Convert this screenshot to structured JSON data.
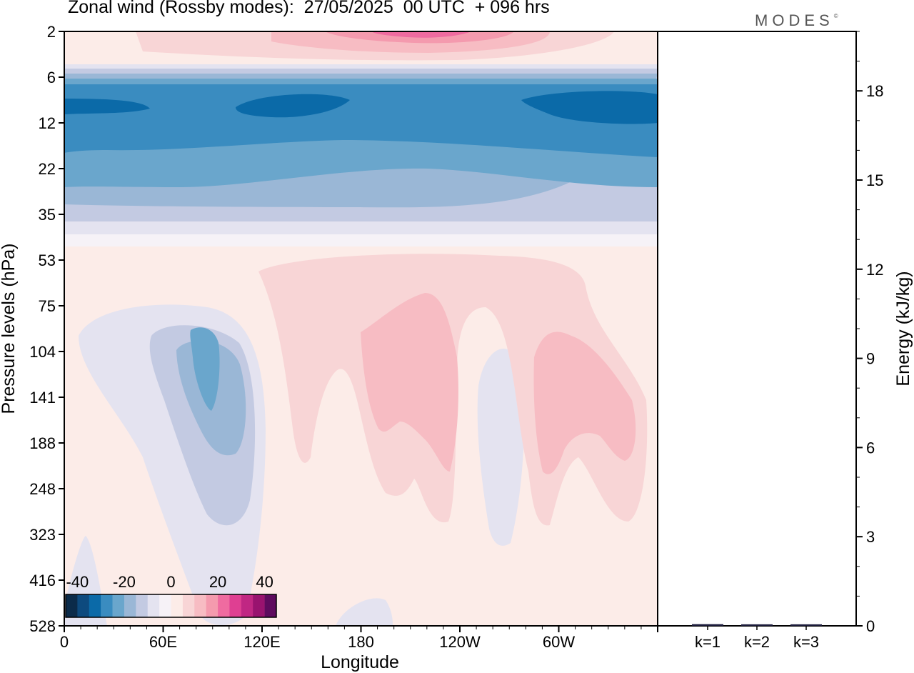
{
  "header": {
    "title": "Zonal wind (Rossby modes):  27/05/2025  00 UTC  + 096 hrs",
    "logo": "MODES",
    "logo_mark": "©"
  },
  "chart_data": [
    {
      "type": "heatmap",
      "xlabel": "Longitude",
      "ylabel": "Pressure levels (hPa)",
      "x_ticks": [
        "0",
        "60E",
        "120E",
        "180",
        "120W",
        "60W"
      ],
      "y_ticks": [
        "2",
        "6",
        "12",
        "22",
        "35",
        "53",
        "75",
        "104",
        "141",
        "188",
        "248",
        "323",
        "416",
        "528"
      ],
      "colorbar": {
        "ticks": [
          "-40",
          "-20",
          "0",
          "20",
          "40"
        ],
        "range": [
          -45,
          45
        ],
        "step": 5,
        "colors": [
          "#0b2b4a",
          "#0d4a7e",
          "#0b6aa8",
          "#3a8cc0",
          "#6aa6cc",
          "#9ab7d6",
          "#c3cae2",
          "#e4e3f0",
          "#f6f2f7",
          "#fcece8",
          "#f8d5d6",
          "#f7bcc3",
          "#f49aae",
          "#ef6ba0",
          "#df3f92",
          "#c02783",
          "#99136f",
          "#5e0b5e"
        ]
      },
      "features": {
        "top_positive_max": 25,
        "stratospheric_jet_min": -40,
        "tropospheric_negative_min": -20,
        "tropospheric_positive_max": 15
      }
    },
    {
      "type": "bar",
      "categories": [
        "k=1",
        "k=2",
        "k=3"
      ],
      "values": [
        0.02,
        0.015,
        0.015
      ],
      "ylabel": "Energy (kJ/kg)",
      "ylim": [
        0,
        20
      ],
      "y_ticks": [
        "0",
        "3",
        "6",
        "9",
        "12",
        "15",
        "18"
      ]
    }
  ]
}
